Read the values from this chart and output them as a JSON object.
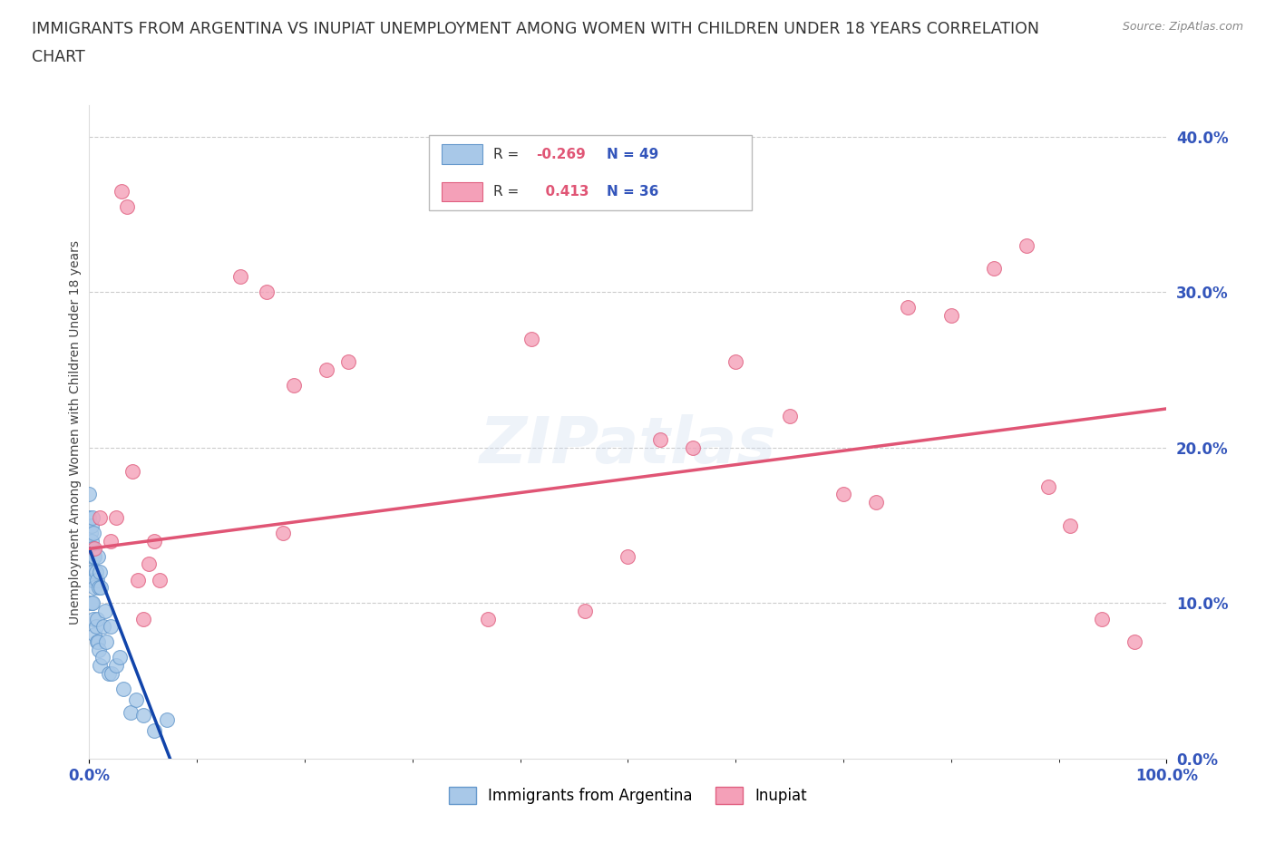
{
  "title_line1": "IMMIGRANTS FROM ARGENTINA VS INUPIAT UNEMPLOYMENT AMONG WOMEN WITH CHILDREN UNDER 18 YEARS CORRELATION",
  "title_line2": "CHART",
  "source": "Source: ZipAtlas.com",
  "ylabel": "Unemployment Among Women with Children Under 18 years",
  "argentina_color": "#a8c8e8",
  "argentina_edge": "#6699cc",
  "inupiat_color": "#f4a0b8",
  "inupiat_edge": "#e06080",
  "trendline_argentina_color": "#1144aa",
  "trendline_inupiat_color": "#e05575",
  "background_color": "#ffffff",
  "xlim": [
    0.0,
    1.0
  ],
  "ylim": [
    0.0,
    0.42
  ],
  "ytick_right_values": [
    0.0,
    0.1,
    0.2,
    0.3,
    0.4
  ],
  "grid_color": "#cccccc",
  "title_color": "#333333",
  "tick_label_color": "#3355bb",
  "argentina_x": [
    0.0,
    0.0,
    0.001,
    0.001,
    0.001,
    0.001,
    0.002,
    0.002,
    0.002,
    0.002,
    0.002,
    0.003,
    0.003,
    0.003,
    0.003,
    0.004,
    0.004,
    0.004,
    0.004,
    0.005,
    0.005,
    0.005,
    0.006,
    0.006,
    0.007,
    0.007,
    0.007,
    0.008,
    0.008,
    0.009,
    0.009,
    0.01,
    0.01,
    0.011,
    0.012,
    0.013,
    0.015,
    0.016,
    0.018,
    0.02,
    0.021,
    0.025,
    0.028,
    0.032,
    0.038,
    0.043,
    0.05,
    0.06,
    0.072
  ],
  "argentina_y": [
    0.17,
    0.155,
    0.145,
    0.135,
    0.12,
    0.1,
    0.15,
    0.14,
    0.13,
    0.115,
    0.1,
    0.155,
    0.135,
    0.12,
    0.1,
    0.145,
    0.13,
    0.115,
    0.09,
    0.13,
    0.11,
    0.08,
    0.12,
    0.085,
    0.115,
    0.09,
    0.075,
    0.13,
    0.075,
    0.11,
    0.07,
    0.12,
    0.06,
    0.11,
    0.065,
    0.085,
    0.095,
    0.075,
    0.055,
    0.085,
    0.055,
    0.06,
    0.065,
    0.045,
    0.03,
    0.038,
    0.028,
    0.018,
    0.025
  ],
  "inupiat_x": [
    0.005,
    0.01,
    0.02,
    0.025,
    0.03,
    0.035,
    0.04,
    0.045,
    0.05,
    0.055,
    0.06,
    0.065,
    0.14,
    0.165,
    0.18,
    0.19,
    0.22,
    0.24,
    0.37,
    0.41,
    0.46,
    0.5,
    0.53,
    0.56,
    0.6,
    0.65,
    0.7,
    0.73,
    0.76,
    0.8,
    0.84,
    0.87,
    0.89,
    0.91,
    0.94,
    0.97
  ],
  "inupiat_y": [
    0.135,
    0.155,
    0.14,
    0.155,
    0.365,
    0.355,
    0.185,
    0.115,
    0.09,
    0.125,
    0.14,
    0.115,
    0.31,
    0.3,
    0.145,
    0.24,
    0.25,
    0.255,
    0.09,
    0.27,
    0.095,
    0.13,
    0.205,
    0.2,
    0.255,
    0.22,
    0.17,
    0.165,
    0.29,
    0.285,
    0.315,
    0.33,
    0.175,
    0.15,
    0.09,
    0.075
  ],
  "leg_R1": "-0.269",
  "leg_N1": "49",
  "leg_R2": "0.413",
  "leg_N2": "36"
}
